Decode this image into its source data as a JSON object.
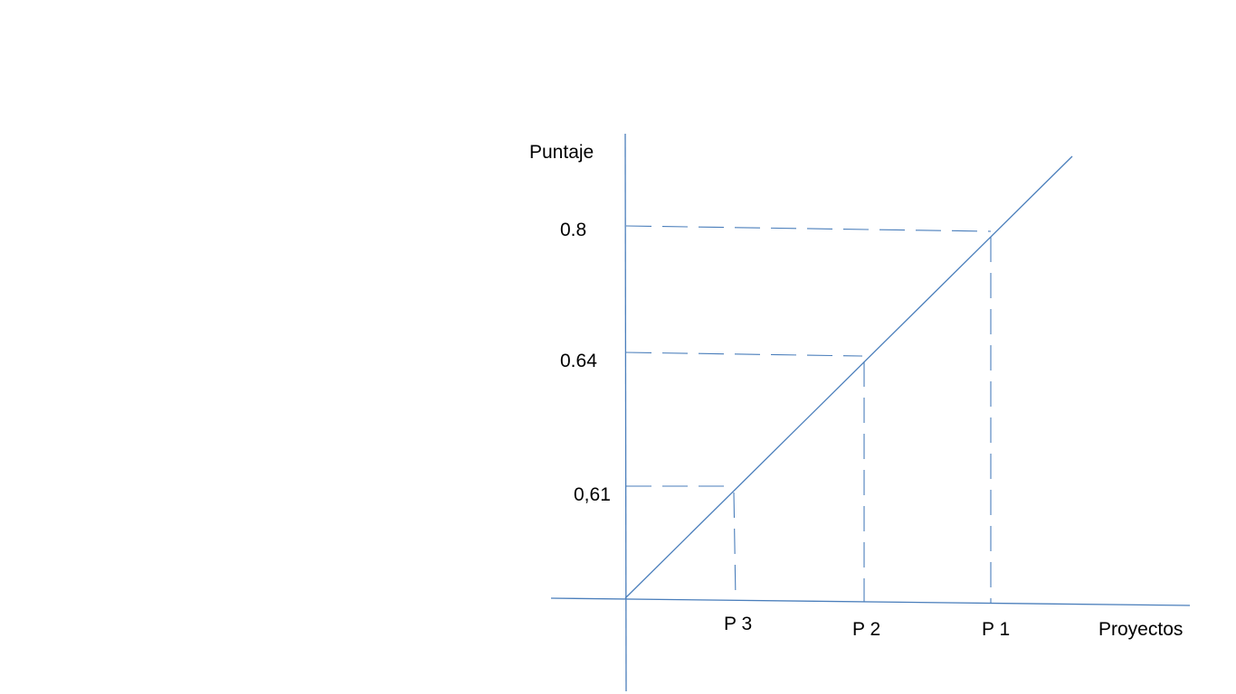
{
  "diagram": {
    "y_axis_label": "Puntaje",
    "x_axis_label": "Proyectos",
    "line_color": "#4a7ebb",
    "points": [
      {
        "project": "P 3",
        "score_label": "0,61"
      },
      {
        "project": "P 2",
        "score_label": "0.64"
      },
      {
        "project": "P 1",
        "score_label": "0.8"
      }
    ]
  }
}
